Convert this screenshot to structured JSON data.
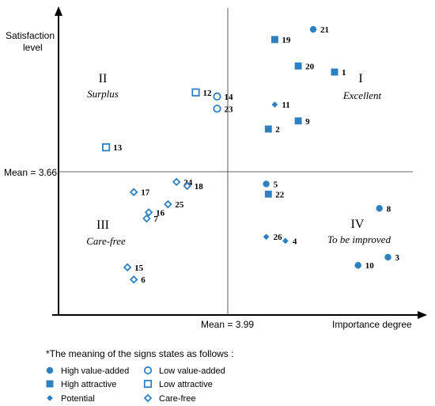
{
  "chart_data": {
    "type": "scatter",
    "ylabel_line1": "Satisfaction",
    "ylabel_line2": "level",
    "xlabel": "Importance degree",
    "x_mean": 3.99,
    "y_mean": 3.66,
    "x_mean_label": "Mean = 3.99",
    "y_mean_label": "Mean = 3.66",
    "quadrants": [
      {
        "numeral": "I",
        "name": "Excellent"
      },
      {
        "numeral": "II",
        "name": "Surplus"
      },
      {
        "numeral": "III",
        "name": "Care-free"
      },
      {
        "numeral": "IV",
        "name": "To be improved"
      }
    ],
    "point_colors": {
      "fill": "#2f80c1",
      "stroke": "#2f80c1"
    },
    "categories": [
      {
        "key": "hva",
        "label": "High value-added",
        "marker": "filled-circle"
      },
      {
        "key": "lva",
        "label": "Low value-added",
        "marker": "open-circle"
      },
      {
        "key": "hat",
        "label": "High attractive",
        "marker": "filled-square"
      },
      {
        "key": "lat",
        "label": "Low attractive",
        "marker": "open-square"
      },
      {
        "key": "pot",
        "label": "Potential",
        "marker": "filled-diamond"
      },
      {
        "key": "cf",
        "label": "Care-free",
        "marker": "open-diamond"
      }
    ],
    "points": [
      {
        "label": "21",
        "category": "hva",
        "x": 4.39,
        "y": 4.36
      },
      {
        "label": "19",
        "category": "hat",
        "x": 4.21,
        "y": 4.31
      },
      {
        "label": "20",
        "category": "hat",
        "x": 4.32,
        "y": 4.18
      },
      {
        "label": "1",
        "category": "hat",
        "x": 4.49,
        "y": 4.15
      },
      {
        "label": "11",
        "category": "pot",
        "x": 4.21,
        "y": 3.99
      },
      {
        "label": "9",
        "category": "hat",
        "x": 4.32,
        "y": 3.91
      },
      {
        "label": "2",
        "category": "hat",
        "x": 4.18,
        "y": 3.87
      },
      {
        "label": "12",
        "category": "lat",
        "x": 3.84,
        "y": 4.05
      },
      {
        "label": "14",
        "category": "lva",
        "x": 3.94,
        "y": 4.03
      },
      {
        "label": "23",
        "category": "lva",
        "x": 3.94,
        "y": 3.97
      },
      {
        "label": "13",
        "category": "lat",
        "x": 3.42,
        "y": 3.78
      },
      {
        "label": "24",
        "category": "cf",
        "x": 3.75,
        "y": 3.61
      },
      {
        "label": "18",
        "category": "cf",
        "x": 3.8,
        "y": 3.59
      },
      {
        "label": "17",
        "category": "cf",
        "x": 3.55,
        "y": 3.56
      },
      {
        "label": "25",
        "category": "cf",
        "x": 3.71,
        "y": 3.5
      },
      {
        "label": "16",
        "category": "cf",
        "x": 3.62,
        "y": 3.46
      },
      {
        "label": "7",
        "category": "cf",
        "x": 3.61,
        "y": 3.43
      },
      {
        "label": "15",
        "category": "cf",
        "x": 3.52,
        "y": 3.19
      },
      {
        "label": "6",
        "category": "cf",
        "x": 3.55,
        "y": 3.13
      },
      {
        "label": "5",
        "category": "hva",
        "x": 4.17,
        "y": 3.6
      },
      {
        "label": "22",
        "category": "hat",
        "x": 4.18,
        "y": 3.55
      },
      {
        "label": "8",
        "category": "hva",
        "x": 4.7,
        "y": 3.48
      },
      {
        "label": "26",
        "category": "pot",
        "x": 4.17,
        "y": 3.34
      },
      {
        "label": "4",
        "category": "pot",
        "x": 4.26,
        "y": 3.32
      },
      {
        "label": "3",
        "category": "hva",
        "x": 4.74,
        "y": 3.24
      },
      {
        "label": "10",
        "category": "hva",
        "x": 4.6,
        "y": 3.2
      }
    ]
  },
  "legend": {
    "title": "*The meaning of the signs states as follows :"
  }
}
